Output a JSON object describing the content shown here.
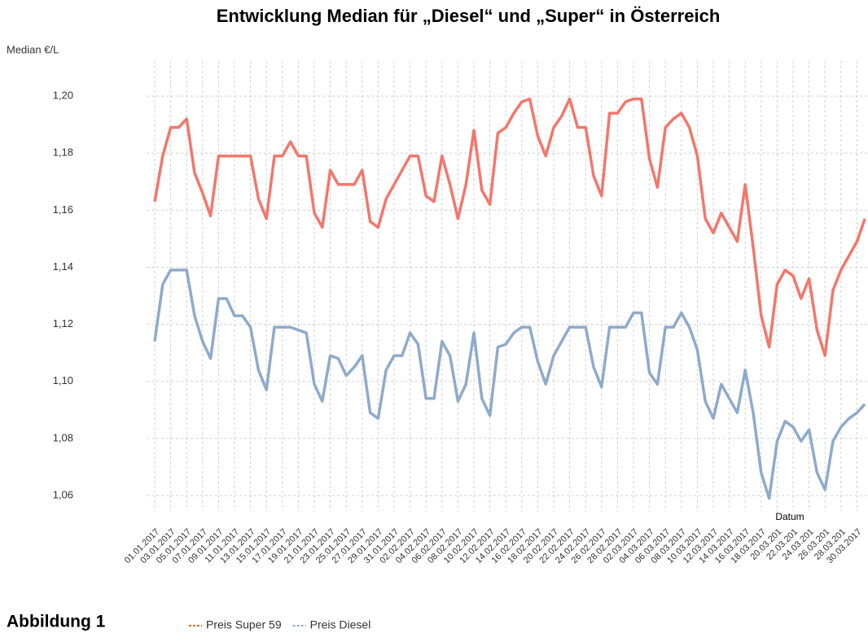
{
  "chart_data": {
    "type": "line",
    "title": "Entwicklung Median für „Diesel“ und „Super“ in Österreich",
    "y_label": "Median €/L",
    "x_label": "Datum",
    "categories": [
      "01.01.2017",
      null,
      "03.01.2017",
      null,
      "05.01.2017",
      null,
      "07.01.2017",
      null,
      "09.01.2017",
      null,
      "11.01.2017",
      null,
      "13.01.2017",
      null,
      "15.01.2017",
      null,
      "17.01.2017",
      null,
      "19.01.2017",
      null,
      "21.01.2017",
      null,
      "23.01.2017",
      null,
      "25.01.2017",
      null,
      "27.01.2017",
      null,
      "29.01.2017",
      null,
      "31.01.2017",
      null,
      "02.02.2017",
      null,
      "04.02.2017",
      null,
      "06.02.2017",
      null,
      "08.02.2017",
      null,
      "10.02.2017",
      null,
      "12.02.2017",
      null,
      "14.02.2017",
      null,
      "16.02.2017",
      null,
      "18.02.2017",
      null,
      "20.02.2017",
      null,
      "22.02.2017",
      null,
      "24.02.2017",
      null,
      "26.02.2017",
      null,
      "28.02.2017",
      null,
      "02.03.2017",
      null,
      "04.03.2017",
      null,
      "06.03.2017",
      null,
      "08.03.2017",
      null,
      "10.03.2017",
      null,
      "12.03.2017",
      null,
      "14.03.2017",
      null,
      "16.03.2017",
      null,
      "18.03.2017",
      null,
      "20.03.201",
      null,
      "22.03.201",
      null,
      "24.03.201",
      null,
      "26.03.201",
      null,
      "28.03.201",
      null,
      "30.03.2017",
      null
    ],
    "series": [
      {
        "name": "Preis Super 59",
        "color": "#f4766b",
        "legend_color": "#e26b0a",
        "values": [
          1.163,
          1.179,
          1.189,
          1.189,
          1.192,
          1.173,
          1.166,
          1.158,
          1.179,
          1.179,
          1.179,
          1.179,
          1.179,
          1.164,
          1.157,
          1.179,
          1.179,
          1.184,
          1.179,
          1.179,
          1.159,
          1.154,
          1.174,
          1.169,
          1.169,
          1.169,
          1.174,
          1.156,
          1.154,
          1.164,
          1.169,
          1.174,
          1.179,
          1.179,
          1.165,
          1.163,
          1.179,
          1.169,
          1.157,
          1.169,
          1.188,
          1.167,
          1.162,
          1.187,
          1.189,
          1.194,
          1.198,
          1.199,
          1.186,
          1.179,
          1.189,
          1.193,
          1.199,
          1.189,
          1.189,
          1.172,
          1.165,
          1.194,
          1.194,
          1.198,
          1.199,
          1.199,
          1.178,
          1.168,
          1.189,
          1.192,
          1.194,
          1.189,
          1.179,
          1.157,
          1.152,
          1.159,
          1.154,
          1.149,
          1.169,
          1.147,
          1.123,
          1.112,
          1.134,
          1.139,
          1.137,
          1.129,
          1.136,
          1.118,
          1.109,
          1.132,
          1.139,
          1.144,
          1.149,
          1.157
        ]
      },
      {
        "name": "Preis Diesel",
        "color": "#8eaacb",
        "legend_color": "#8eaacb",
        "values": [
          1.114,
          1.134,
          1.139,
          1.139,
          1.139,
          1.123,
          1.114,
          1.108,
          1.129,
          1.129,
          1.123,
          1.123,
          1.119,
          1.104,
          1.097,
          1.119,
          1.119,
          1.119,
          1.118,
          1.117,
          1.099,
          1.093,
          1.109,
          1.108,
          1.102,
          1.105,
          1.109,
          1.089,
          1.087,
          1.104,
          1.109,
          1.109,
          1.117,
          1.113,
          1.094,
          1.094,
          1.114,
          1.109,
          1.093,
          1.099,
          1.117,
          1.094,
          1.088,
          1.112,
          1.113,
          1.117,
          1.119,
          1.119,
          1.107,
          1.099,
          1.109,
          1.114,
          1.119,
          1.119,
          1.119,
          1.105,
          1.098,
          1.119,
          1.119,
          1.119,
          1.124,
          1.124,
          1.103,
          1.099,
          1.119,
          1.119,
          1.124,
          1.119,
          1.111,
          1.093,
          1.087,
          1.099,
          1.094,
          1.089,
          1.104,
          1.089,
          1.068,
          1.059,
          1.079,
          1.086,
          1.084,
          1.079,
          1.083,
          1.068,
          1.062,
          1.079,
          1.084,
          1.087,
          1.089,
          1.092
        ]
      }
    ],
    "ylim": [
      1.052,
      1.21
    ],
    "yticks": [
      {
        "value": 1.06,
        "label": "1,06"
      },
      {
        "value": 1.08,
        "label": "1,08"
      },
      {
        "value": 1.1,
        "label": "1,10"
      },
      {
        "value": 1.12,
        "label": "1,12"
      },
      {
        "value": 1.14,
        "label": "1,14"
      },
      {
        "value": 1.16,
        "label": "1,16"
      },
      {
        "value": 1.18,
        "label": "1,18"
      },
      {
        "value": 1.2,
        "label": "1,20"
      }
    ],
    "grid": true
  },
  "caption": "Abbildung 1"
}
